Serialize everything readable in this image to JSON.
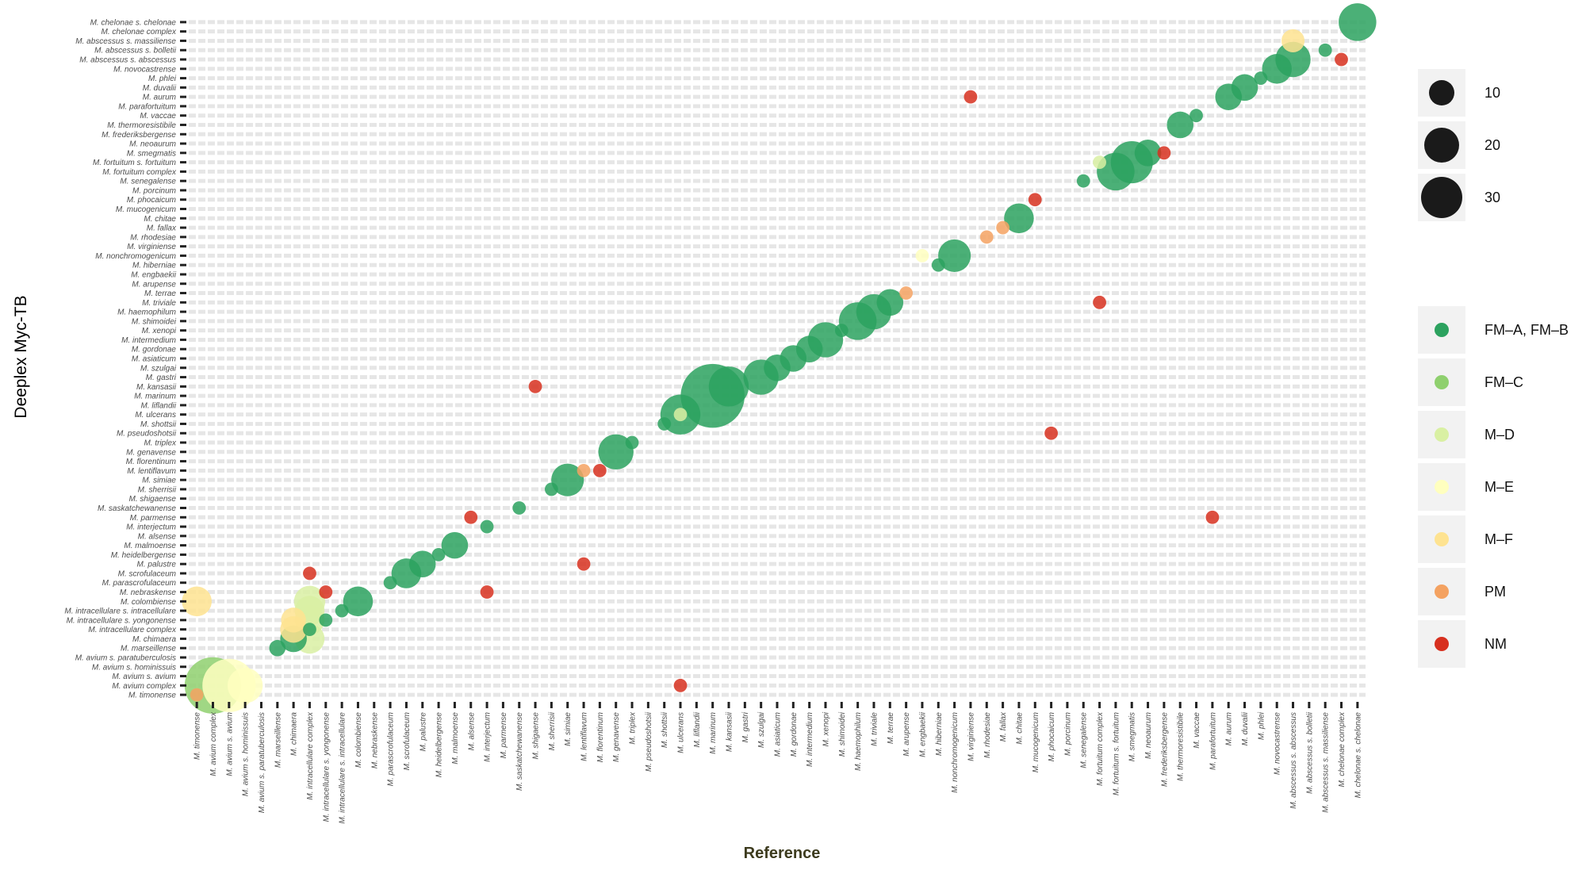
{
  "chart_data": {
    "type": "scatter",
    "xlabel": "Reference",
    "ylabel": "Deeplex Myc-TB",
    "x_categories": [
      "M. timonense",
      "M. avium complex",
      "M. avium s. avium",
      "M. avium s. hominissuis",
      "M. avium s. paratuberculosis",
      "M. marseillense",
      "M. chimaera",
      "M. intracellulare complex",
      "M. intracellulare s. yongonense",
      "M. intracellulare s. intracellulare",
      "M. colombiense",
      "M. nebraskense",
      "M. parascrofulaceum",
      "M. scrofulaceum",
      "M. palustre",
      "M. heidelbergense",
      "M. malmoense",
      "M. alsense",
      "M. interjectum",
      "M. parmense",
      "M. saskatchewanense",
      "M. shigaense",
      "M. sherrisii",
      "M. simiae",
      "M. lentiflavum",
      "M. florentinum",
      "M. genavense",
      "M. triplex",
      "M. pseudoshotsii",
      "M. shottsii",
      "M. ulcerans",
      "M. liflandii",
      "M. marinum",
      "M. kansasii",
      "M. gastri",
      "M. szulgai",
      "M. asiaticum",
      "M. gordonae",
      "M. intermedium",
      "M. xenopi",
      "M. shimoidei",
      "M. haemophilum",
      "M. triviale",
      "M. terrae",
      "M. arupense",
      "M. engbaekii",
      "M. hiberniae",
      "M. nonchromogenicum",
      "M. virginiense",
      "M. rhodesiae",
      "M. fallax",
      "M. chitae",
      "M. mucogenicum",
      "M. phocaicum",
      "M. porcinum",
      "M. senegalense",
      "M. fortuitum complex",
      "M. fortuitum s. fortuitum",
      "M. smegmatis",
      "M. neoaurum",
      "M. frederiksbergense",
      "M. thermoresistibile",
      "M. vaccae",
      "M. parafortuitum",
      "M. aurum",
      "M. duvalii",
      "M. phlei",
      "M. novocastrense",
      "M. abscessus s. abscessus",
      "M. abscessus s. bolletii",
      "M. abscessus s. massiliense",
      "M. chelonae complex",
      "M. chelonae s. chelonae"
    ],
    "y_categories": [
      "M. chelonae s. chelonae",
      "M. chelonae complex",
      "M. abscessus s. massiliense",
      "M. abscessus s. bolletii",
      "M. abscessus s. abscessus",
      "M. novocastrense",
      "M. phlei",
      "M. duvalii",
      "M. aurum",
      "M. parafortuitum",
      "M. vaccae",
      "M. thermoresistibile",
      "M. frederiksbergense",
      "M. neoaurum",
      "M. smegmatis",
      "M. fortuitum s. fortuitum",
      "M. fortuitum complex",
      "M. senegalense",
      "M. porcinum",
      "M. phocaicum",
      "M. mucogenicum",
      "M. chitae",
      "M. fallax",
      "M. rhodesiae",
      "M. virginiense",
      "M. nonchromogenicum",
      "M. hiberniae",
      "M. engbaekii",
      "M. arupense",
      "M. terrae",
      "M. triviale",
      "M. haemophilum",
      "M. shimoidei",
      "M. xenopi",
      "M. intermedium",
      "M. gordonae",
      "M. asiaticum",
      "M. szulgai",
      "M. gastri",
      "M. kansasii",
      "M. marinum",
      "M. liflandii",
      "M. ulcerans",
      "M. shottsii",
      "M. pseudoshotsii",
      "M. triplex",
      "M. genavense",
      "M. florentinum",
      "M. lentiflavum",
      "M. simiae",
      "M. sherrisii",
      "M. shigaense",
      "M. saskatchewanense",
      "M. parmense",
      "M. interjectum",
      "M. alsense",
      "M. malmoense",
      "M. heidelbergense",
      "M. palustre",
      "M. scrofulaceum",
      "M. parascrofulaceum",
      "M. nebraskense",
      "M. colombiense",
      "M. intracellulare s. intracellulare",
      "M. intracellulare s. yongonense",
      "M. intracellulare complex",
      "M. chimaera",
      "M. marseillense",
      "M. avium s. paratuberculosis",
      "M. avium s. hominissuis",
      "M. avium s. avium",
      "M. avium complex",
      "M. timonense"
    ],
    "size_legend": {
      "values": [
        10,
        20,
        30
      ]
    },
    "categories_legend": [
      {
        "name": "FM–A, FM–B",
        "color": "#2ca25f"
      },
      {
        "name": "FM–C",
        "color": "#8fd06e"
      },
      {
        "name": "M–D",
        "color": "#d9f0a3"
      },
      {
        "name": "M–E",
        "color": "#ffffbf"
      },
      {
        "name": "M–F",
        "color": "#fee391"
      },
      {
        "name": "PM",
        "color": "#f4a261"
      },
      {
        "name": "NM",
        "color": "#d7301f"
      }
    ],
    "points": [
      {
        "x": "M. timonense",
        "y": "M. timonense",
        "cat": "PM",
        "n": 2
      },
      {
        "x": "M. avium complex",
        "y": "M. avium complex",
        "cat": "FM–C",
        "n": 36
      },
      {
        "x": "M. avium s. avium",
        "y": "M. avium complex",
        "cat": "M–E",
        "n": 32
      },
      {
        "x": "M. avium s. hominissuis",
        "y": "M. avium complex",
        "cat": "M–E",
        "n": 14
      },
      {
        "x": "M. timonense",
        "y": "M. colombiense",
        "cat": "M–F",
        "n": 10
      },
      {
        "x": "M. marseillense",
        "y": "M. marseillense",
        "cat": "FM–A, FM–B",
        "n": 3
      },
      {
        "x": "M. chimaera",
        "y": "M. chimaera",
        "cat": "FM–A, FM–B",
        "n": 8
      },
      {
        "x": "M. chimaera",
        "y": "M. intracellulare complex",
        "cat": "M–F",
        "n": 8
      },
      {
        "x": "M. chimaera",
        "y": "M. intracellulare s. yongonense",
        "cat": "M–F",
        "n": 7
      },
      {
        "x": "M. intracellulare complex",
        "y": "M. chimaera",
        "cat": "M–D",
        "n": 10
      },
      {
        "x": "M. intracellulare complex",
        "y": "M. intracellulare complex",
        "cat": "FM–A, FM–B",
        "n": 2
      },
      {
        "x": "M. intracellulare complex",
        "y": "M. intracellulare s. yongonense",
        "cat": "M–D",
        "n": 10
      },
      {
        "x": "M. intracellulare complex",
        "y": "M. intracellulare s. intracellulare",
        "cat": "M–D",
        "n": 10
      },
      {
        "x": "M. intracellulare complex",
        "y": "M. colombiense",
        "cat": "M–D",
        "n": 11
      },
      {
        "x": "M. intracellulare complex",
        "y": "M. scrofulaceum",
        "cat": "NM",
        "n": 2
      },
      {
        "x": "M. intracellulare s. yongonense",
        "y": "M. intracellulare s. yongonense",
        "cat": "FM–A, FM–B",
        "n": 2
      },
      {
        "x": "M. intracellulare s. yongonense",
        "y": "M. nebraskense",
        "cat": "NM",
        "n": 2
      },
      {
        "x": "M. intracellulare s. intracellulare",
        "y": "M. intracellulare s. intracellulare",
        "cat": "FM–A, FM–B",
        "n": 2
      },
      {
        "x": "M. colombiense",
        "y": "M. colombiense",
        "cat": "FM–A, FM–B",
        "n": 10
      },
      {
        "x": "M. parascrofulaceum",
        "y": "M. parascrofulaceum",
        "cat": "FM–A, FM–B",
        "n": 2
      },
      {
        "x": "M. scrofulaceum",
        "y": "M. scrofulaceum",
        "cat": "FM–A, FM–B",
        "n": 10
      },
      {
        "x": "M. palustre",
        "y": "M. palustre",
        "cat": "FM–A, FM–B",
        "n": 8
      },
      {
        "x": "M. heidelbergense",
        "y": "M. heidelbergense",
        "cat": "FM–A, FM–B",
        "n": 2
      },
      {
        "x": "M. malmoense",
        "y": "M. malmoense",
        "cat": "FM–A, FM–B",
        "n": 8
      },
      {
        "x": "M. alsense",
        "y": "M. parmense",
        "cat": "NM",
        "n": 2
      },
      {
        "x": "M. interjectum",
        "y": "M. interjectum",
        "cat": "FM–A, FM–B",
        "n": 2
      },
      {
        "x": "M. interjectum",
        "y": "M. nebraskense",
        "cat": "NM",
        "n": 2
      },
      {
        "x": "M. saskatchewanense",
        "y": "M. saskatchewanense",
        "cat": "FM–A, FM–B",
        "n": 2
      },
      {
        "x": "M. shigaense",
        "y": "M. kansasii",
        "cat": "NM",
        "n": 2
      },
      {
        "x": "M. sherrisii",
        "y": "M. sherrisii",
        "cat": "FM–A, FM–B",
        "n": 2
      },
      {
        "x": "M. simiae",
        "y": "M. simiae",
        "cat": "FM–A, FM–B",
        "n": 12
      },
      {
        "x": "M. lentiflavum",
        "y": "M. lentiflavum",
        "cat": "PM",
        "n": 2
      },
      {
        "x": "M. lentiflavum",
        "y": "M. palustre",
        "cat": "NM",
        "n": 2
      },
      {
        "x": "M. florentinum",
        "y": "M. lentiflavum",
        "cat": "NM",
        "n": 2
      },
      {
        "x": "M. genavense",
        "y": "M. genavense",
        "cat": "FM–A, FM–B",
        "n": 14
      },
      {
        "x": "M. triplex",
        "y": "M. triplex",
        "cat": "FM–A, FM–B",
        "n": 2
      },
      {
        "x": "M. shottsii",
        "y": "M. shottsii",
        "cat": "FM–A, FM–B",
        "n": 2
      },
      {
        "x": "M. ulcerans",
        "y": "M. ulcerans",
        "cat": "FM–A, FM–B",
        "n": 18
      },
      {
        "x": "M. ulcerans",
        "y": "M. ulcerans",
        "cat": "M–D",
        "n": 2
      },
      {
        "x": "M. ulcerans",
        "y": "M. avium complex",
        "cat": "NM",
        "n": 2
      },
      {
        "x": "M. marinum",
        "y": "M. marinum",
        "cat": "FM–A, FM–B",
        "n": 46
      },
      {
        "x": "M. kansasii",
        "y": "M. kansasii",
        "cat": "FM–A, FM–B",
        "n": 18
      },
      {
        "x": "M. szulgai",
        "y": "M. gastri",
        "cat": "FM–A, FM–B",
        "n": 14
      },
      {
        "x": "M. asiaticum",
        "y": "M. szulgai",
        "cat": "FM–A, FM–B",
        "n": 8
      },
      {
        "x": "M. gordonae",
        "y": "M. asiaticum",
        "cat": "FM–A, FM–B",
        "n": 8
      },
      {
        "x": "M. intermedium",
        "y": "M. gordonae",
        "cat": "FM–A, FM–B",
        "n": 8
      },
      {
        "x": "M. xenopi",
        "y": "M. intermedium",
        "cat": "FM–A, FM–B",
        "n": 14
      },
      {
        "x": "M. shimoidei",
        "y": "M. xenopi",
        "cat": "FM–A, FM–B",
        "n": 2
      },
      {
        "x": "M. haemophilum",
        "y": "M. shimoidei",
        "cat": "FM–A, FM–B",
        "n": 16
      },
      {
        "x": "M. triviale",
        "y": "M. haemophilum",
        "cat": "FM–A, FM–B",
        "n": 14
      },
      {
        "x": "M. terrae",
        "y": "M. triviale",
        "cat": "FM–A, FM–B",
        "n": 8
      },
      {
        "x": "M. arupense",
        "y": "M. terrae",
        "cat": "PM",
        "n": 2
      },
      {
        "x": "M. engbaekii",
        "y": "M. nonchromogenicum",
        "cat": "M–E",
        "n": 2
      },
      {
        "x": "M. hiberniae",
        "y": "M. hiberniae",
        "cat": "FM–A, FM–B",
        "n": 2
      },
      {
        "x": "M. nonchromogenicum",
        "y": "M. nonchromogenicum",
        "cat": "FM–A, FM–B",
        "n": 12
      },
      {
        "x": "M. virginiense",
        "y": "M. aurum",
        "cat": "NM",
        "n": 2
      },
      {
        "x": "M. rhodesiae",
        "y": "M. rhodesiae",
        "cat": "PM",
        "n": 2
      },
      {
        "x": "M. fallax",
        "y": "M. fallax",
        "cat": "PM",
        "n": 2
      },
      {
        "x": "M. chitae",
        "y": "M. chitae",
        "cat": "FM–A, FM–B",
        "n": 10
      },
      {
        "x": "M. mucogenicum",
        "y": "M. phocaicum",
        "cat": "NM",
        "n": 2
      },
      {
        "x": "M. phocaicum",
        "y": "M. pseudoshotsii",
        "cat": "NM",
        "n": 2
      },
      {
        "x": "M. senegalense",
        "y": "M. senegalense",
        "cat": "FM–A, FM–B",
        "n": 2
      },
      {
        "x": "M. fortuitum complex",
        "y": "M. fortuitum s. fortuitum",
        "cat": "M–D",
        "n": 2
      },
      {
        "x": "M. fortuitum complex",
        "y": "M. triviale",
        "cat": "NM",
        "n": 2
      },
      {
        "x": "M. fortuitum s. fortuitum",
        "y": "M. fortuitum complex",
        "cat": "FM–A, FM–B",
        "n": 16
      },
      {
        "x": "M. smegmatis",
        "y": "M. fortuitum s. fortuitum",
        "cat": "FM–A, FM–B",
        "n": 20
      },
      {
        "x": "M. neoaurum",
        "y": "M. smegmatis",
        "cat": "FM–A, FM–B",
        "n": 8
      },
      {
        "x": "M. frederiksbergense",
        "y": "M. smegmatis",
        "cat": "NM",
        "n": 2
      },
      {
        "x": "M. thermoresistibile",
        "y": "M. thermoresistibile",
        "cat": "FM–A, FM–B",
        "n": 8
      },
      {
        "x": "M. vaccae",
        "y": "M. vaccae",
        "cat": "FM–A, FM–B",
        "n": 2
      },
      {
        "x": "M. parafortuitum",
        "y": "M. parmense",
        "cat": "NM",
        "n": 2
      },
      {
        "x": "M. aurum",
        "y": "M. aurum",
        "cat": "FM–A, FM–B",
        "n": 8
      },
      {
        "x": "M. duvalii",
        "y": "M. duvalii",
        "cat": "FM–A, FM–B",
        "n": 8
      },
      {
        "x": "M. phlei",
        "y": "M. phlei",
        "cat": "FM–A, FM–B",
        "n": 2
      },
      {
        "x": "M. novocastrense",
        "y": "M. novocastrense",
        "cat": "FM–A, FM–B",
        "n": 10
      },
      {
        "x": "M. abscessus s. abscessus",
        "y": "M. abscessus s. massiliense",
        "cat": "M–F",
        "n": 6
      },
      {
        "x": "M. abscessus s. abscessus",
        "y": "M. abscessus s. abscessus",
        "cat": "FM–A, FM–B",
        "n": 14
      },
      {
        "x": "M. abscessus s. massiliense",
        "y": "M. abscessus s. bolletii",
        "cat": "FM–A, FM–B",
        "n": 2
      },
      {
        "x": "M. chelonae complex",
        "y": "M. abscessus s. abscessus",
        "cat": "NM",
        "n": 2
      },
      {
        "x": "M. chelonae s. chelonae",
        "y": "M. chelonae s. chelonae",
        "cat": "FM–A, FM–B",
        "n": 16
      }
    ]
  }
}
